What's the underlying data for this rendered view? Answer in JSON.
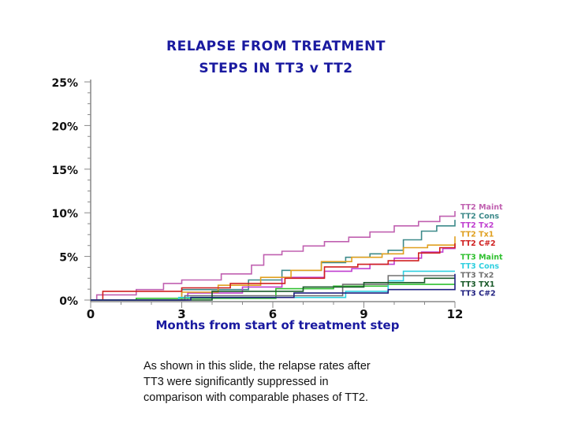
{
  "chart_data": {
    "type": "line",
    "title": [
      "RELAPSE FROM TREATMENT",
      "STEPS IN TT3 v TT2"
    ],
    "xlabel": "Months from start of treatment step",
    "ylabel": "",
    "xlim": [
      0,
      12
    ],
    "ylim": [
      0,
      25
    ],
    "xticks": [
      0,
      3,
      6,
      9,
      12
    ],
    "xtick_labels": [
      "0",
      "3",
      "6",
      "9",
      "12"
    ],
    "yticks": [
      0,
      5,
      10,
      15,
      20,
      25
    ],
    "ytick_labels": [
      "0%",
      "5%",
      "10%",
      "15%",
      "20%",
      "25%"
    ],
    "grid": false,
    "legend_position": "right",
    "series": [
      {
        "name": "TT2 Maint",
        "color": "#c060b0",
        "x": [
          0,
          0.2,
          1.5,
          2.4,
          3.0,
          4.3,
          5.3,
          5.7,
          6.3,
          7.0,
          7.7,
          8.5,
          9.2,
          10.0,
          10.8,
          11.5,
          12.0
        ],
        "y": [
          0,
          0.6,
          1.2,
          1.9,
          2.3,
          3.0,
          4.0,
          5.2,
          5.6,
          6.2,
          6.7,
          7.2,
          7.8,
          8.5,
          9.0,
          9.6,
          10.2
        ]
      },
      {
        "name": "TT2 Cons",
        "color": "#3d8a8a",
        "x": [
          0,
          3.0,
          5.2,
          6.3,
          7.6,
          8.4,
          9.2,
          9.8,
          10.3,
          10.9,
          11.4,
          12.0
        ],
        "y": [
          0,
          1.2,
          2.3,
          3.4,
          4.3,
          4.9,
          5.3,
          5.7,
          6.9,
          7.9,
          8.5,
          9.2
        ]
      },
      {
        "name": "TT2 Tx2",
        "color": "#c040d0",
        "x": [
          0,
          3.2,
          5.0,
          6.3,
          7.7,
          8.6,
          9.2,
          10.0,
          10.9,
          11.6,
          12.0
        ],
        "y": [
          0,
          0.8,
          1.5,
          2.6,
          3.3,
          3.6,
          4.1,
          4.8,
          5.5,
          5.9,
          6.3
        ]
      },
      {
        "name": "TT2 Tx1",
        "color": "#e0a020",
        "x": [
          0,
          3.0,
          4.2,
          5.6,
          6.6,
          7.6,
          8.6,
          9.6,
          10.3,
          11.1,
          12.0
        ],
        "y": [
          0,
          0.9,
          1.7,
          2.6,
          3.4,
          4.4,
          4.9,
          5.3,
          6.0,
          6.3,
          7.3
        ]
      },
      {
        "name": "TT2 C#2",
        "color": "#d02020",
        "x": [
          0,
          0.4,
          3.0,
          4.6,
          6.4,
          7.7,
          8.8,
          9.8,
          10.8,
          11.5,
          12.0
        ],
        "y": [
          0,
          1.0,
          1.4,
          1.9,
          2.5,
          3.8,
          4.1,
          4.5,
          5.4,
          6.0,
          6.5
        ]
      },
      {
        "name": "TT3 Maint",
        "color": "#30c030",
        "x": [
          0,
          1.5,
          6.1,
          8.0,
          9.8,
          12.0
        ],
        "y": [
          0,
          0.2,
          1.3,
          1.6,
          1.8,
          1.8
        ]
      },
      {
        "name": "TT3 Cons",
        "color": "#30d0e0",
        "x": [
          0,
          2.9,
          8.4,
          9.8,
          10.3,
          12.0
        ],
        "y": [
          0,
          0.3,
          1.0,
          2.2,
          3.3,
          3.3
        ]
      },
      {
        "name": "TT3 Tx2",
        "color": "#707070",
        "x": [
          0,
          3.1,
          8.3,
          9.8,
          12.0
        ],
        "y": [
          0,
          0.5,
          1.8,
          2.8,
          2.8
        ]
      },
      {
        "name": "TT3 TX1",
        "color": "#1a5a2a",
        "x": [
          0,
          4.0,
          7.0,
          9.0,
          11.0,
          12.0
        ],
        "y": [
          0,
          1.0,
          1.5,
          2.0,
          2.5,
          2.5
        ]
      },
      {
        "name": "TT3 C#2",
        "color": "#202080",
        "x": [
          0,
          3.3,
          6.7,
          9.8,
          12.0
        ],
        "y": [
          0,
          0.3,
          0.8,
          1.2,
          3.0
        ]
      }
    ]
  },
  "caption": {
    "lines": [
      "As shown in this slide, the relapse rates after",
      "TT3 were significantly suppressed in",
      "comparison with comparable phases of TT2."
    ]
  }
}
